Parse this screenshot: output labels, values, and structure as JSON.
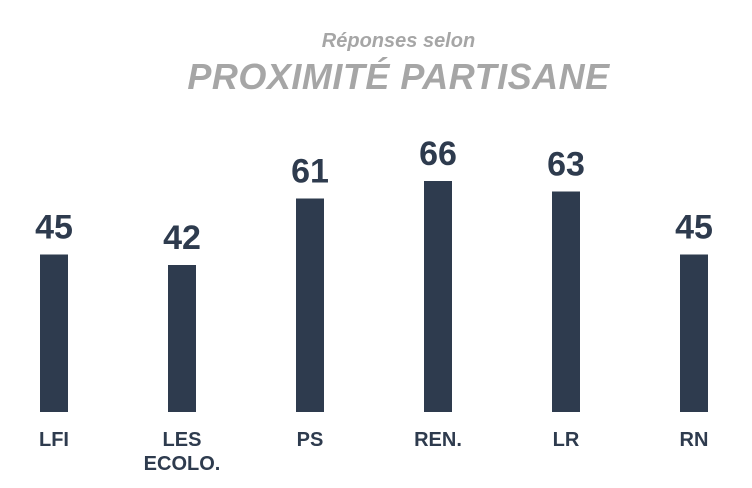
{
  "chart_data": {
    "type": "bar",
    "subtitle": "Réponses selon",
    "title": "PROXIMITÉ PARTISANE",
    "categories": [
      [
        "LFI"
      ],
      [
        "LES",
        "ECOLO."
      ],
      [
        "PS"
      ],
      [
        "REN."
      ],
      [
        "LR"
      ],
      [
        "RN"
      ]
    ],
    "values": [
      45,
      42,
      61,
      66,
      63,
      45
    ],
    "ylim": [
      0,
      100
    ],
    "grid": false,
    "legend": "none",
    "colors": {
      "bar": "#2e3b4e",
      "value_text": "#2e3b4e",
      "label_text": "#2e3b4e",
      "title_text": "#a6a6a6"
    }
  }
}
